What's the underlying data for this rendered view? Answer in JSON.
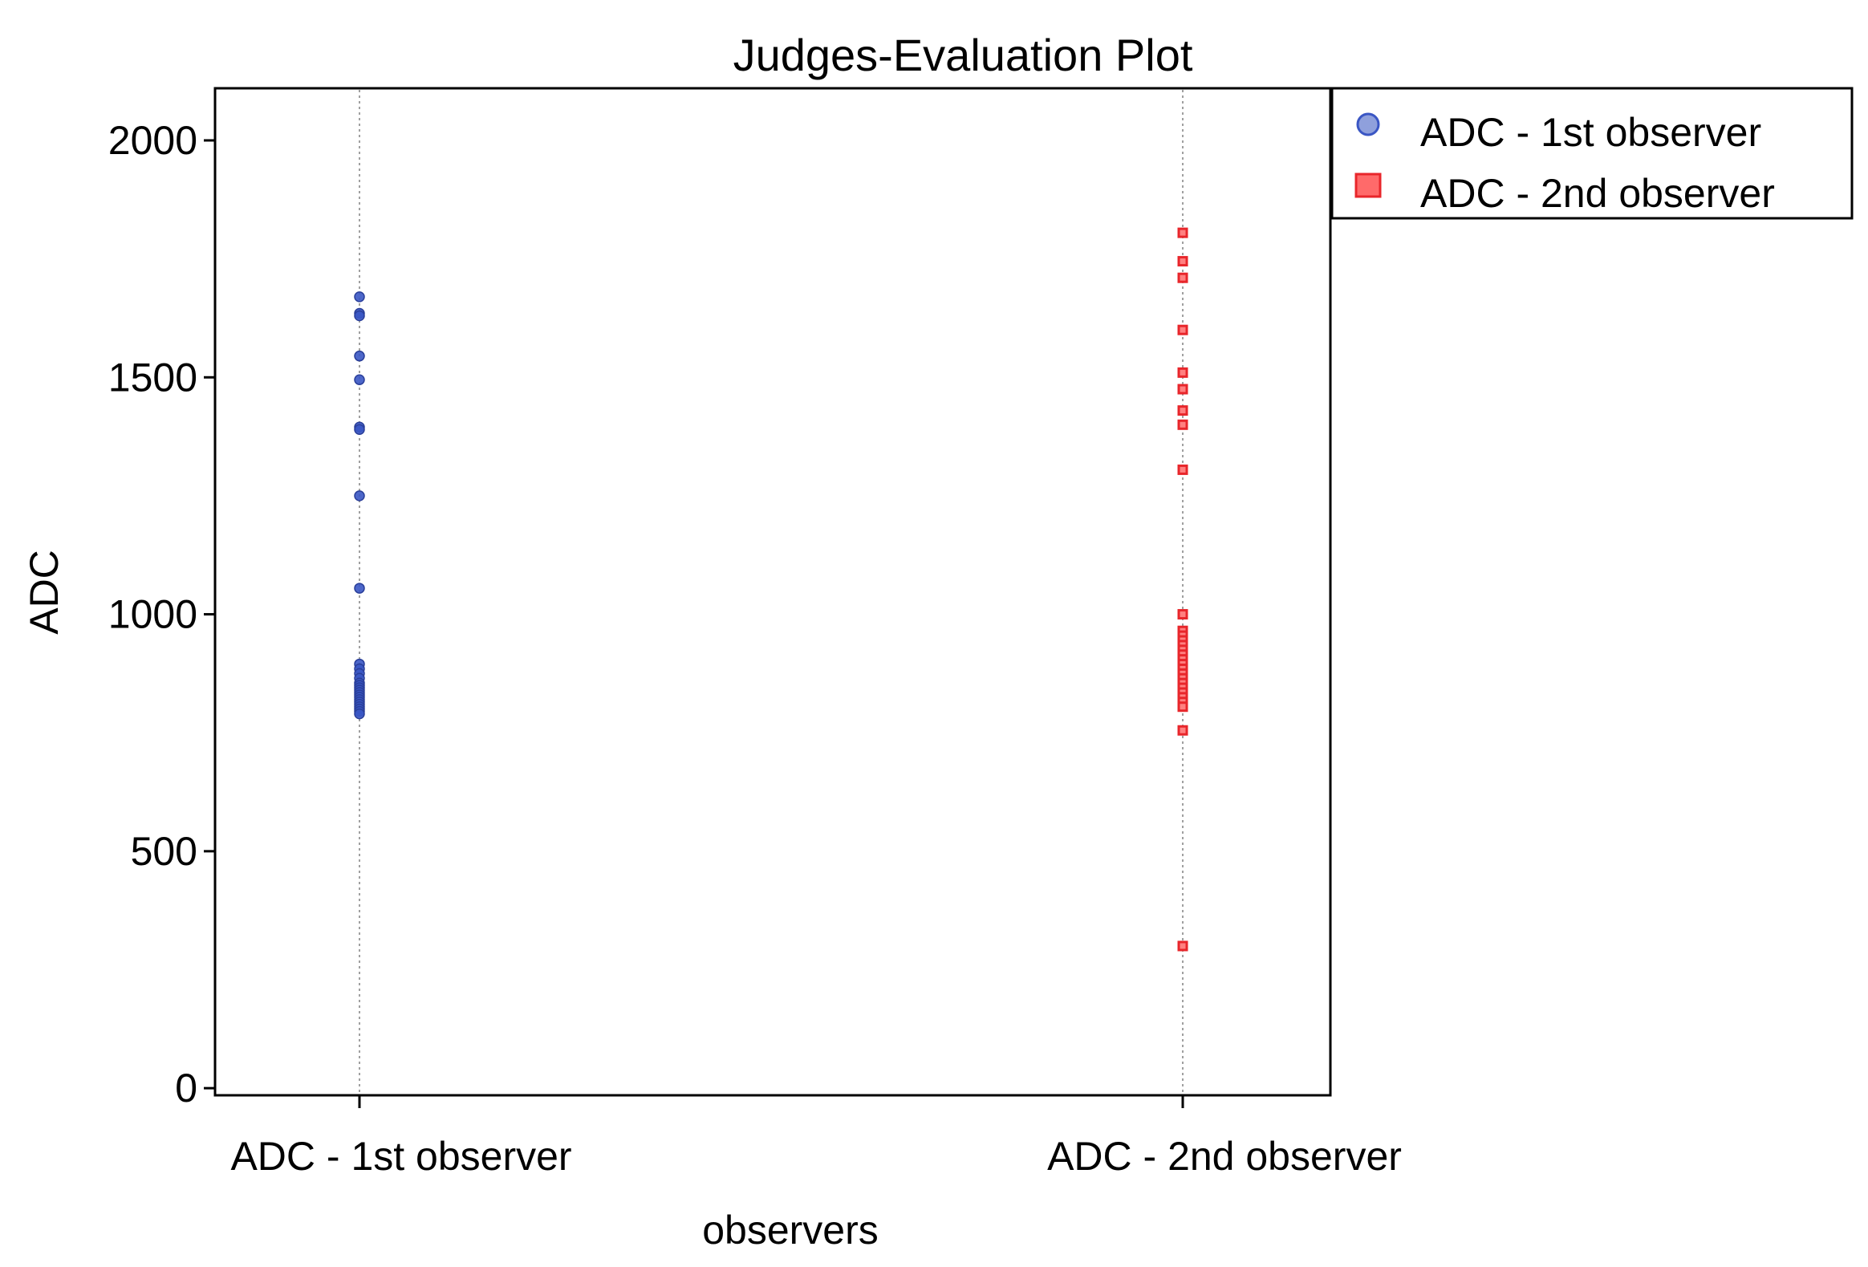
{
  "chart_data": {
    "type": "scatter",
    "title": "Judges-Evaluation Plot",
    "xlabel": "observers",
    "ylabel": "ADC",
    "categories": [
      "ADC - 1st observer",
      "ADC - 2nd observer"
    ],
    "ylim": [
      -15,
      2110
    ],
    "yticks": [
      0,
      500,
      1000,
      1500,
      2000
    ],
    "grid": "vertical dotted lines at categories",
    "legend_position": "top-right, outside plot",
    "series": [
      {
        "name": "ADC - 1st observer",
        "category": "ADC - 1st observer",
        "marker": "circle",
        "color": "#3a56c4",
        "values": [
          1670,
          1635,
          1630,
          1545,
          1495,
          1395,
          1390,
          1250,
          1055,
          895,
          885,
          875,
          865,
          855,
          850,
          845,
          840,
          835,
          830,
          825,
          820,
          815,
          810,
          805,
          800,
          795,
          790
        ]
      },
      {
        "name": "ADC - 2nd observer",
        "category": "ADC - 2nd observer",
        "marker": "square",
        "color": "#e8262b",
        "values": [
          1805,
          1745,
          1710,
          1600,
          1510,
          1475,
          1430,
          1400,
          1305,
          1000,
          965,
          955,
          945,
          935,
          925,
          915,
          905,
          895,
          885,
          875,
          865,
          855,
          845,
          835,
          825,
          815,
          805,
          755,
          300
        ]
      }
    ]
  }
}
